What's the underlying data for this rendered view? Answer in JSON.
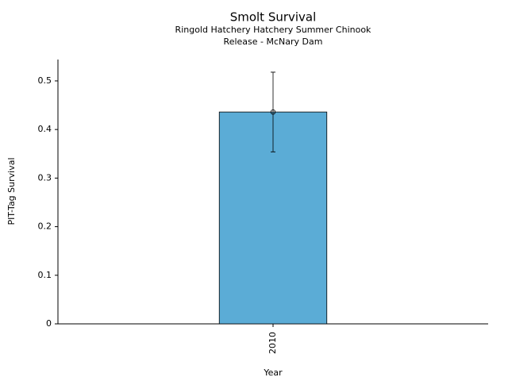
{
  "chart_data": {
    "type": "bar",
    "title": "Smolt Survival",
    "subtitle": [
      "Ringold Hatchery Hatchery Summer Chinook",
      "Release - McNary Dam"
    ],
    "x_label": "Year",
    "y_label": "PIT-Tag Survival",
    "categories": [
      "2010"
    ],
    "series": [
      {
        "name": "PIT-Tag Survival",
        "color": "#5bacd6",
        "values": [
          0.436
        ],
        "errors": [
          0.082
        ]
      }
    ],
    "ylim": [
      0,
      0.544
    ],
    "yticks": [
      0,
      0.1,
      0.2,
      0.3,
      0.4,
      0.5
    ],
    "grid": false
  }
}
